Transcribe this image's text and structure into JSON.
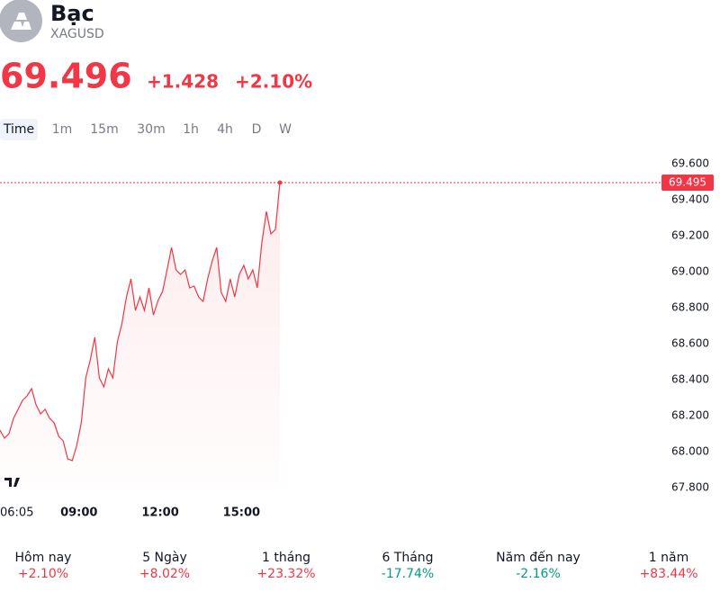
{
  "header": {
    "title": "Bạc",
    "symbol": "XAGUSD",
    "price": "69.496",
    "change": "+1.428",
    "change_pct": "+2.10%"
  },
  "tabs": [
    "Time",
    "1m",
    "15m",
    "30m",
    "1h",
    "4h",
    "D",
    "W"
  ],
  "chart_data": {
    "type": "line",
    "color": "#f23645",
    "x": [
      "06:05",
      "06:15",
      "06:25",
      "06:35",
      "06:45",
      "06:55",
      "07:05",
      "07:15",
      "07:25",
      "07:35",
      "07:45",
      "07:55",
      "08:05",
      "08:15",
      "08:25",
      "08:35",
      "08:45",
      "08:55",
      "09:05",
      "09:15",
      "09:25",
      "09:35",
      "09:45",
      "09:55",
      "10:05",
      "10:15",
      "10:25",
      "10:35",
      "10:45",
      "10:55",
      "11:05",
      "11:15",
      "11:25",
      "11:35",
      "11:45",
      "11:55",
      "12:05",
      "12:15",
      "12:25",
      "12:35",
      "12:45",
      "12:55",
      "13:05",
      "13:15",
      "13:25",
      "13:35",
      "13:45",
      "13:55",
      "14:05",
      "14:15",
      "14:25",
      "14:35",
      "14:45",
      "14:55",
      "15:05",
      "15:15",
      "15:25",
      "15:35",
      "15:45",
      "15:55",
      "16:05",
      "16:15",
      "16:25"
    ],
    "values": [
      68.12,
      68.075,
      68.1,
      68.185,
      68.235,
      68.285,
      68.31,
      68.35,
      68.26,
      68.21,
      68.235,
      68.185,
      68.16,
      68.085,
      68.06,
      67.96,
      67.95,
      68.035,
      68.16,
      68.41,
      68.51,
      68.635,
      68.41,
      68.36,
      68.46,
      68.41,
      68.61,
      68.71,
      68.86,
      68.96,
      68.785,
      68.86,
      68.785,
      68.91,
      68.76,
      68.84,
      68.89,
      69.01,
      69.135,
      69.01,
      68.985,
      69.01,
      68.91,
      68.92,
      68.86,
      68.835,
      68.96,
      69.06,
      69.135,
      68.885,
      68.835,
      68.96,
      68.86,
      68.985,
      69.035,
      68.96,
      69.01,
      68.91,
      69.16,
      69.335,
      69.21,
      69.235,
      69.495
    ],
    "xlim": [
      "06:05",
      "16:25"
    ],
    "xticks": [
      "06:05",
      "09:00",
      "12:00",
      "15:00"
    ],
    "ylim": [
      67.7,
      69.7
    ],
    "yticks": [
      {
        "value": 67.8,
        "label": "67.800"
      },
      {
        "value": 68,
        "label": "68.000"
      },
      {
        "value": 68.2,
        "label": "68.200"
      },
      {
        "value": 68.4,
        "label": "68.400"
      },
      {
        "value": 68.6,
        "label": "68.600"
      },
      {
        "value": 68.8,
        "label": "68.800"
      },
      {
        "value": 69,
        "label": "69.000"
      },
      {
        "value": 69.2,
        "label": "69.200"
      },
      {
        "value": 69.4,
        "label": "69.400"
      },
      {
        "value": 69.6,
        "label": "69.600"
      }
    ]
  },
  "periods": [
    {
      "label": "Hôm nay",
      "value": "+2.10%",
      "color": "#f23645"
    },
    {
      "label": "5 Ngày",
      "value": "+8.02%",
      "color": "#f23645"
    },
    {
      "label": "1 tháng",
      "value": "+23.32%",
      "color": "#f23645"
    },
    {
      "label": "6 Tháng",
      "value": "-17.74%",
      "color": "#089981"
    },
    {
      "label": "Năm đến nay",
      "value": "-2.16%",
      "color": "#089981"
    },
    {
      "label": "1 năm",
      "value": "+83.44%",
      "color": "#f23645"
    }
  ]
}
